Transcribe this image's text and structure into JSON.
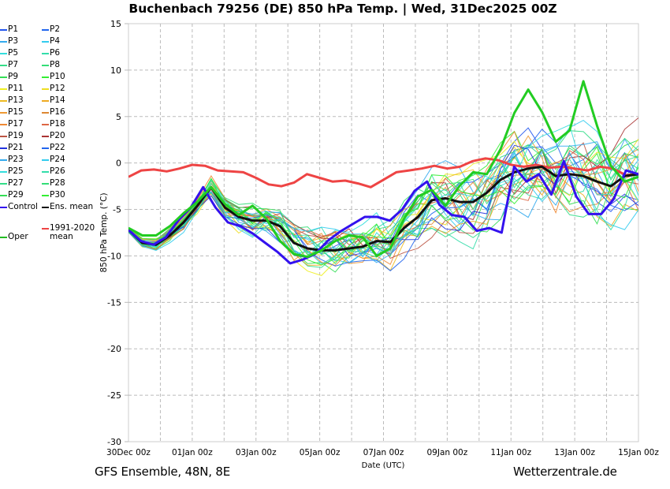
{
  "title": "Buchenbach 79256 (DE)  850 hPa Temp. | Wed, 31Dec2025 00Z",
  "footer": {
    "left": "GFS Ensemble, 48N, 8E",
    "right": "Wetterzentrale.de"
  },
  "chart_data": {
    "type": "line",
    "title": "Buchenbach 79256 (DE)  850 hPa Temp. | Wed, 31Dec2025 00Z",
    "xlabel": "Date (UTC)",
    "ylabel": "850 hPa Temp. (°C)",
    "ylim": [
      -30,
      15
    ],
    "xlim_days": [
      0,
      16
    ],
    "x_step_hours": 12,
    "yticks": [
      15,
      10,
      5,
      0,
      -5,
      -10,
      -15,
      -20,
      -25,
      -30
    ],
    "xtick_labels": [
      "30Dec 00z",
      "01Jan 00z",
      "03Jan 00z",
      "05Jan 00z",
      "07Jan 00z",
      "09Jan 00z",
      "11Jan 00z",
      "13Jan 00z",
      "15Jan 00z"
    ],
    "grid": true,
    "legend_placement": "left-outside",
    "series": [
      {
        "name": "Oper",
        "color": "#22cc22",
        "width": 3,
        "values": [
          -7,
          -7.8,
          -7.8,
          -6.8,
          -5.4,
          -4.2,
          -2.6,
          -4.4,
          -5.6,
          -4.6,
          -6.0,
          -8.4,
          -9.8,
          -10.1,
          -9.4,
          -8.4,
          -7.8,
          -8.0,
          -10.0,
          -9.2,
          -6.0,
          -3.6,
          -2.9,
          -4.6,
          -2.5,
          -1.0,
          -1.2,
          1.5,
          5.4,
          7.9,
          5.5,
          2.3,
          3.5,
          8.8,
          4.0,
          -0.3,
          -2.0,
          -1.5
        ]
      },
      {
        "name": "Control",
        "color": "#3311ee",
        "width": 3,
        "values": [
          -7.2,
          -8.4,
          -8.8,
          -8.0,
          -6.2,
          -4.8,
          -2.6,
          -4.8,
          -6.4,
          -6.8,
          -7.6,
          -8.6,
          -9.6,
          -10.8,
          -10.4,
          -9.8,
          -8.4,
          -7.4,
          -6.6,
          -5.8,
          -5.8,
          -6.2,
          -5.0,
          -3.0,
          -2.0,
          -4.5,
          -5.6,
          -5.8,
          -7.3,
          -7.0,
          -7.5,
          -0.4,
          -2.0,
          -1.2,
          -3.4,
          0.2,
          -3.6,
          -5.5,
          -5.5,
          -3.9,
          -0.8,
          -1.2
        ]
      },
      {
        "name": "Ens. mean",
        "color": "#111111",
        "width": 3,
        "values": [
          -7.2,
          -8.6,
          -8.8,
          -7.8,
          -6.4,
          -4.6,
          -2.6,
          -4.8,
          -5.8,
          -6.2,
          -6.2,
          -6.8,
          -8.6,
          -9.2,
          -9.4,
          -9.4,
          -9.2,
          -9.0,
          -8.4,
          -8.5,
          -7.0,
          -5.8,
          -4.0,
          -3.8,
          -4.2,
          -4.2,
          -3.2,
          -1.8,
          -1.0,
          -0.6,
          -0.4,
          -1.4,
          -1.2,
          -1.4,
          -2.0,
          -2.5,
          -1.4,
          -1.2
        ]
      },
      {
        "name": "1991-2020 mean",
        "color": "#ee4444",
        "width": 3,
        "values": [
          -1.5,
          -0.8,
          -0.7,
          -0.9,
          -0.6,
          -0.2,
          -0.3,
          -0.8,
          -0.9,
          -1.0,
          -1.6,
          -2.3,
          -2.5,
          -2.1,
          -1.2,
          -1.6,
          -2.0,
          -1.9,
          -2.2,
          -2.6,
          -1.8,
          -1.0,
          -0.8,
          -0.6,
          -0.3,
          -0.6,
          -0.4,
          0.2,
          0.5,
          0.3,
          -0.2,
          -0.4,
          -0.2,
          -0.5,
          -0.4,
          -0.6,
          -0.8,
          -0.4,
          -0.6,
          -1.3,
          -1.2
        ]
      }
    ],
    "members_note": "P1–P30 perturbation members drawn as thin lines spread around the ensemble mean"
  },
  "legend": [
    {
      "label": "P1",
      "color": "#2255ee"
    },
    {
      "label": "P2",
      "color": "#2266ee"
    },
    {
      "label": "P3",
      "color": "#33aaee"
    },
    {
      "label": "P4",
      "color": "#33ccee"
    },
    {
      "label": "P5",
      "color": "#33dddd"
    },
    {
      "label": "P6",
      "color": "#33ddaa"
    },
    {
      "label": "P7",
      "color": "#33dd88"
    },
    {
      "label": "P8",
      "color": "#33dd77"
    },
    {
      "label": "P9",
      "color": "#33dd55"
    },
    {
      "label": "P10",
      "color": "#33ee33"
    },
    {
      "label": "P11",
      "color": "#eeee22"
    },
    {
      "label": "P12",
      "color": "#eedd22"
    },
    {
      "label": "P13",
      "color": "#eebb22"
    },
    {
      "label": "P14",
      "color": "#eeaa22"
    },
    {
      "label": "P15",
      "color": "#ee9933"
    },
    {
      "label": "P16",
      "color": "#dd8833"
    },
    {
      "label": "P17",
      "color": "#ee8833"
    },
    {
      "label": "P18",
      "color": "#dd6644"
    },
    {
      "label": "P19",
      "color": "#bb5544"
    },
    {
      "label": "P20",
      "color": "#aa3333"
    },
    {
      "label": "P21",
      "color": "#2233dd"
    },
    {
      "label": "P22",
      "color": "#2266ee"
    },
    {
      "label": "P23",
      "color": "#33aaee"
    },
    {
      "label": "P24",
      "color": "#33ccee"
    },
    {
      "label": "P25",
      "color": "#33dddd"
    },
    {
      "label": "P26",
      "color": "#33ddaa"
    },
    {
      "label": "P27",
      "color": "#33dd88"
    },
    {
      "label": "P28",
      "color": "#33dd77"
    },
    {
      "label": "P29",
      "color": "#33dd55"
    },
    {
      "label": "P30",
      "color": "#33ee33"
    },
    {
      "label": "Control",
      "color": "#3311ee"
    },
    {
      "label": "Ens. mean",
      "color": "#111111"
    },
    {
      "label": "Oper",
      "color": "#22bb22"
    },
    {
      "label": "1991-2020\nmean",
      "color": "#ee4444"
    }
  ]
}
